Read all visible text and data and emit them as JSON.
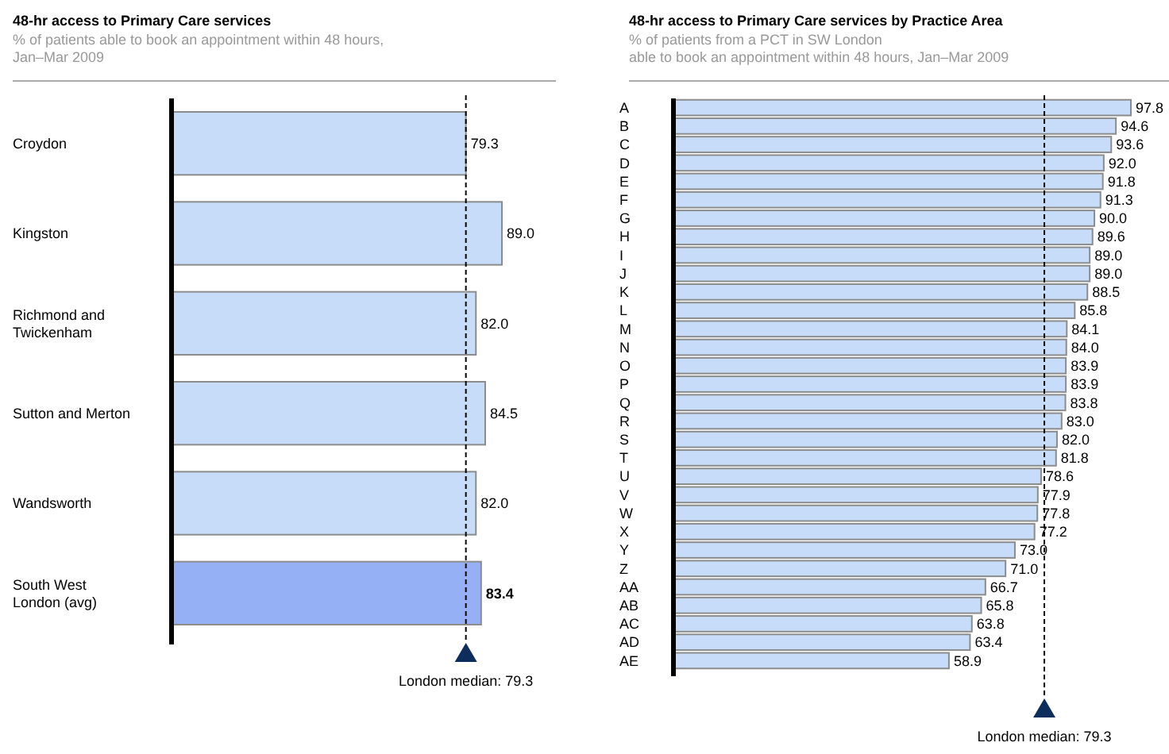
{
  "chart_data": [
    {
      "type": "bar",
      "orientation": "horizontal",
      "title": "48-hr access to Primary Care services",
      "subtitle": "% of patients able to book an appointment within 48 hours,\nJan–Mar 2009",
      "categories": [
        "Croydon",
        "Kingston",
        "Richmond and Twickenham",
        "Sutton and Merton",
        "Wandsworth",
        "South West London (avg)"
      ],
      "values": [
        79.3,
        89.0,
        82.0,
        84.5,
        82.0,
        83.4
      ],
      "value_labels": [
        "79.3",
        "89.0",
        "82.0",
        "84.5",
        "82.0",
        "83.4"
      ],
      "colors": [
        "#c6dcf8",
        "#c6dcf8",
        "#c6dcf8",
        "#c6dcf8",
        "#c6dcf8",
        "#96b0f5"
      ],
      "ref_lines": [
        {
          "axis": "x",
          "value": 79.3,
          "label": "London median: 79.3",
          "line_style": "dashed"
        }
      ]
    },
    {
      "type": "bar",
      "orientation": "horizontal",
      "title": "48-hr access to Primary Care services by Practice Area",
      "subtitle": "% of patients from a PCT in SW London\nable to book an appointment within 48 hours, Jan–Mar 2009",
      "categories": [
        "A",
        "B",
        "C",
        "D",
        "E",
        "F",
        "G",
        "H",
        "I",
        "J",
        "K",
        "L",
        "M",
        "N",
        "O",
        "P",
        "Q",
        "R",
        "S",
        "T",
        "U",
        "V",
        "W",
        "X",
        "Y",
        "Z",
        "AA",
        "AB",
        "AC",
        "AD",
        "AE"
      ],
      "values": [
        97.8,
        94.6,
        93.6,
        92.0,
        91.8,
        91.3,
        90.0,
        89.6,
        89.0,
        89.0,
        88.5,
        85.8,
        84.1,
        84.0,
        83.9,
        83.9,
        83.8,
        83.0,
        82.0,
        81.8,
        78.6,
        77.9,
        77.8,
        77.2,
        73.0,
        71.0,
        66.7,
        65.8,
        63.8,
        63.4,
        58.9
      ],
      "value_labels": [
        "97.8",
        "94.6",
        "93.6",
        "92.0",
        "91.8",
        "91.3",
        "90.0",
        "89.6",
        "89.0",
        "89.0",
        "88.5",
        "85.8",
        "84.1",
        "84.0",
        "83.9",
        "83.9",
        "83.8",
        "83.0",
        "82.0",
        "81.8",
        "78.6",
        "77.9",
        "77.8",
        "77.2",
        "73.0",
        "71.0",
        "66.7",
        "65.8",
        "63.8",
        "63.4",
        "58.9"
      ],
      "colors": [
        "#c6dcf8",
        "#c6dcf8",
        "#c6dcf8",
        "#c6dcf8",
        "#c6dcf8",
        "#c6dcf8",
        "#c6dcf8",
        "#c6dcf8",
        "#c6dcf8",
        "#c6dcf8",
        "#c6dcf8",
        "#c6dcf8",
        "#c6dcf8",
        "#c6dcf8",
        "#c6dcf8",
        "#c6dcf8",
        "#c6dcf8",
        "#c6dcf8",
        "#c6dcf8",
        "#c6dcf8",
        "#c6dcf8",
        "#c6dcf8",
        "#c6dcf8",
        "#c6dcf8",
        "#c6dcf8",
        "#c6dcf8",
        "#c6dcf8",
        "#c6dcf8",
        "#c6dcf8",
        "#c6dcf8",
        "#c6dcf8"
      ],
      "ref_lines": [
        {
          "axis": "x",
          "value": 79.3,
          "label": "London median: 79.3",
          "line_style": "dashed"
        }
      ]
    }
  ]
}
